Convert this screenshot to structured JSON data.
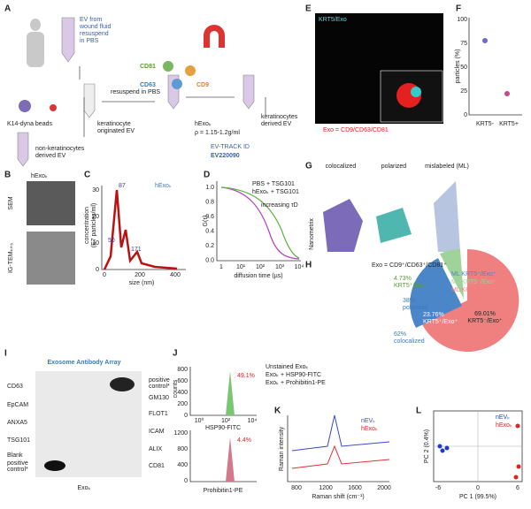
{
  "panels": {
    "A": {
      "letter": "A",
      "source": [
        "EV from",
        "wound fluid",
        "resuspend",
        "in PBS"
      ],
      "beads": "K14-dyna beads",
      "originated": [
        "keratinocyte",
        "originated EV"
      ],
      "resuspend": "resuspend in PBS",
      "markers": [
        "CD81",
        "CD63",
        "CD9"
      ],
      "derived": [
        "keratinocytes",
        "derived EV"
      ],
      "fraction": "hExoₖ",
      "density": "ρ = 1.15-1.2g/ml",
      "track": "EV-TRACK ID",
      "track_id": "EV220090",
      "non": [
        "non-keratinocytes",
        "derived EV"
      ]
    },
    "B": {
      "letter": "B",
      "title": "hExoₖ",
      "sem": "SEM",
      "tem": "IG-TEMₖᵣₜ₅"
    },
    "C": {
      "letter": "C",
      "title": "hExoₖ",
      "peaks": [
        "87",
        "50",
        "171"
      ],
      "ylabel": [
        "concentration",
        "(E7 particles/ml)"
      ],
      "yticks": [
        "30",
        "20",
        "10",
        "0"
      ],
      "xticks": [
        "0",
        "200",
        "400"
      ],
      "xlabel": "size (nm)"
    },
    "D": {
      "letter": "D",
      "legend": [
        "PBS + TSG101",
        "hExoₖ + TSG101"
      ],
      "arrow": "increasing τD",
      "ylabel": "G(τ)",
      "yticks": [
        "1.0",
        "0.8",
        "0.6",
        "0.4",
        "0.2",
        "0.0"
      ],
      "xticks": [
        "1",
        "10¹",
        "10²",
        "10³",
        "10⁴"
      ],
      "xlabel": "diffusion time (µs)"
    },
    "E": {
      "letter": "E",
      "title": "KRT5/Exo",
      "caption": "Exo = CD9/CD63/CD81"
    },
    "F": {
      "letter": "F",
      "ylabel": "particles (%)",
      "yticks": [
        "100",
        "75",
        "50",
        "25",
        "0"
      ],
      "xticks": [
        "KRT5-",
        "KRT5+"
      ]
    },
    "G": {
      "letter": "G",
      "titles": [
        "colocalized",
        "polarized",
        "mislabeled (ML)"
      ],
      "side": "Nanometrix"
    },
    "H": {
      "letter": "H",
      "title": "Exo = CD9⁺/CD63⁺/CD81⁺",
      "legend": [
        "ML KRT5⁺/Exo⁺",
        "ML KRT5⁻/Exo⁺",
        "ML KRT5⁺/Exo⁻"
      ],
      "green": [
        "4.73%",
        "KRT5⁺/Exo⁻"
      ],
      "polarized": [
        "38%",
        "polarized"
      ],
      "blue": [
        "23.76%",
        "KRT5⁺/Exo⁺"
      ],
      "colocalized": [
        "62%",
        "colocalized"
      ],
      "red": [
        "69.01%",
        "KRT5⁻/Exo⁺"
      ]
    },
    "I": {
      "letter": "I",
      "title": "Exosome Antibody Array",
      "left": [
        "CD63",
        "EpCAM",
        "ANXA5",
        "TSG101",
        "Blank",
        "positive",
        "control*"
      ],
      "right": [
        "positive",
        "control*",
        "GM130",
        "FLOT1",
        "ICAM",
        "ALIX",
        "CD81"
      ],
      "bottom": "Exoₖ"
    },
    "J": {
      "letter": "J",
      "legend": [
        "Unstained Exoₖ",
        "Exoₖ + HSP90-FITC",
        "Exoₖ + Prohibitin1-PE"
      ],
      "top_pct": "49.1%",
      "bottom_pct": "4.4%",
      "ylabel": "counts",
      "top_yticks": [
        "800",
        "600",
        "400",
        "200",
        "0"
      ],
      "bottom_yticks": [
        "1200",
        "800",
        "400",
        "0"
      ],
      "xticks": [
        "10⁰",
        "10²",
        "10⁴"
      ],
      "top_xlabel": "HSP90-FITC",
      "bottom_xlabel": "Prohibitin1-PE"
    },
    "K": {
      "letter": "K",
      "legend": [
        "nEVₖ",
        "hExoₖ"
      ],
      "ylabel": "Raman intensity",
      "xticks": [
        "800",
        "1200",
        "1600",
        "2000"
      ],
      "xlabel": "Raman shift (cm⁻¹)"
    },
    "L": {
      "letter": "L",
      "legend": [
        "nEVₖ",
        "hExoₖ"
      ],
      "ylabel": "PC 2 (0.4%)",
      "xlabel": "PC 1 (99.5%)",
      "xticks": [
        "-6",
        "0",
        "6"
      ]
    }
  }
}
